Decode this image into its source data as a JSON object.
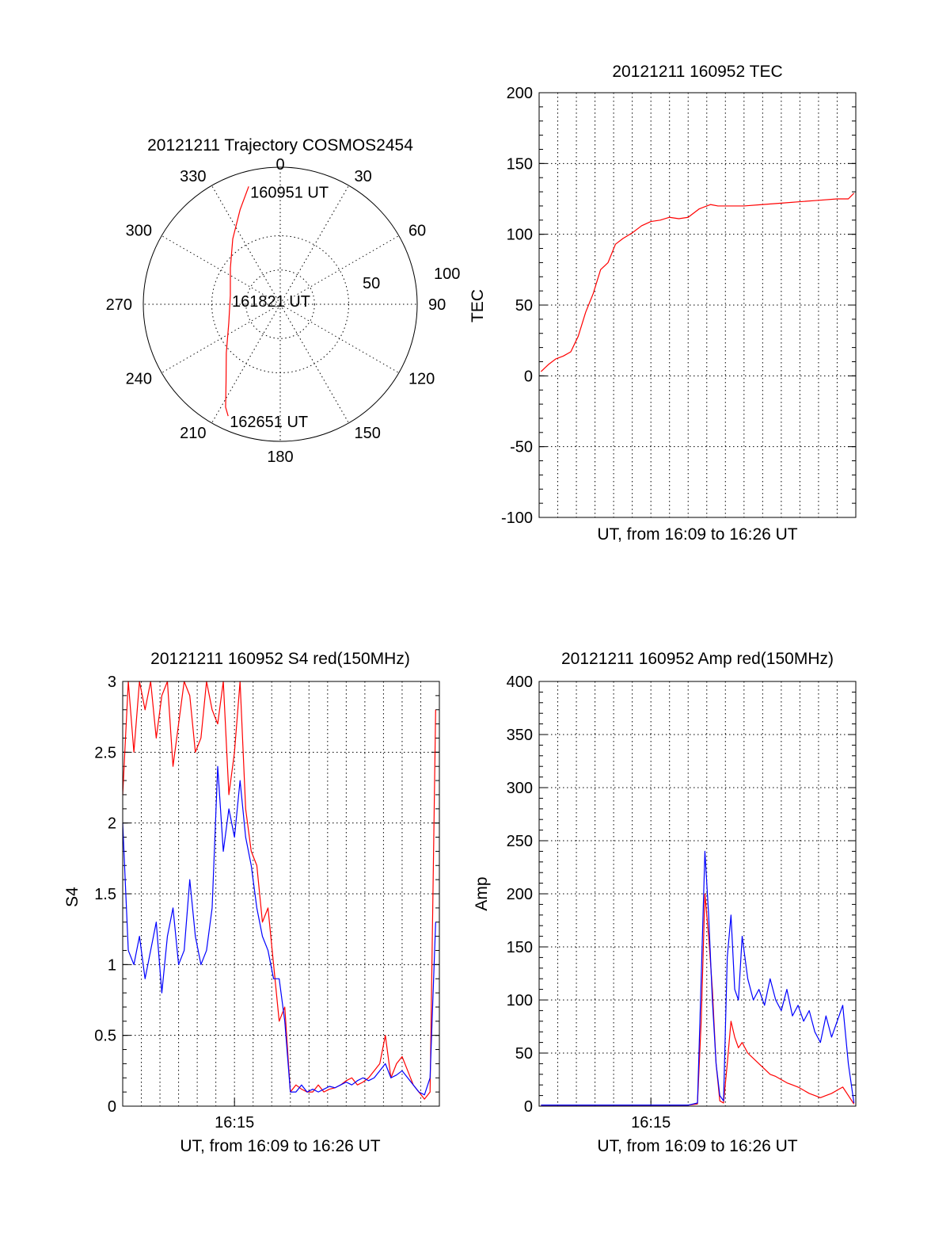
{
  "chart_data": [
    {
      "id": "trajectory",
      "type": "polar",
      "title": "20121211 Trajectory COSMOS2454",
      "angle_labels": [
        "0",
        "30",
        "60",
        "90",
        "120",
        "150",
        "180",
        "210",
        "240",
        "270",
        "300",
        "330"
      ],
      "radius_labels": [
        "50",
        "100"
      ],
      "radius_max": 100,
      "series": [
        {
          "color": "#ff0000",
          "points": [
            {
              "azimuth": 345,
              "r": 89
            },
            {
              "azimuth": 337,
              "r": 75
            },
            {
              "azimuth": 324,
              "r": 59
            },
            {
              "azimuth": 306,
              "r": 45
            },
            {
              "azimuth": 280,
              "r": 37
            },
            {
              "azimuth": 250,
              "r": 40
            },
            {
              "azimuth": 228,
              "r": 53
            },
            {
              "azimuth": 215,
              "r": 69
            },
            {
              "azimuth": 208,
              "r": 85
            },
            {
              "azimuth": 205,
              "r": 90
            }
          ]
        }
      ],
      "annotations": [
        {
          "text": "160951 UT",
          "azimuth": 345,
          "r": 89
        },
        {
          "text": "161821 UT",
          "azimuth": 280,
          "r": 37
        },
        {
          "text": "162651 UT",
          "azimuth": 205,
          "r": 90
        }
      ]
    },
    {
      "id": "tec",
      "type": "line",
      "title": "20121211 160952 TEC",
      "xlabel": "UT, from 16:09 to 16:26 UT",
      "ylabel": "TEC",
      "xlim": [
        0,
        17
      ],
      "ylim": [
        -100,
        200
      ],
      "yticks": [
        -100,
        -50,
        0,
        50,
        100,
        150,
        200
      ],
      "xgrid_count": 17,
      "grid": true,
      "series": [
        {
          "color": "#ff0000",
          "x": [
            0.1,
            0.5,
            0.9,
            1.3,
            1.7,
            2.1,
            2.5,
            2.9,
            3.3,
            3.7,
            4.1,
            4.5,
            5.0,
            5.5,
            6.0,
            6.5,
            7.0,
            7.5,
            8.0,
            8.6,
            9.2,
            9.6,
            10.0,
            11.0,
            12.0,
            13.0,
            14.0,
            15.0,
            16.0,
            16.6,
            16.9
          ],
          "y": [
            3,
            8,
            12,
            14,
            17,
            28,
            45,
            58,
            75,
            80,
            93,
            97,
            101,
            106,
            109,
            110,
            112,
            111,
            112,
            118,
            121,
            120,
            120,
            120,
            121,
            122,
            123,
            124,
            125,
            125,
            129
          ]
        }
      ]
    },
    {
      "id": "s4",
      "type": "line",
      "title": "20121211 160952 S4 red(150MHz)",
      "xlabel": "UT, from 16:09 to 16:26 UT",
      "ylabel": "S4",
      "xtick_labels": [
        "16:15"
      ],
      "xlim": [
        0,
        17
      ],
      "ylim": [
        0,
        3
      ],
      "yticks": [
        "0",
        "0.5",
        "1",
        "1.5",
        "2",
        "2.5",
        "3"
      ],
      "xgrid_count": 17,
      "grid": true,
      "series": [
        {
          "color": "#ff0000",
          "x": [
            0.0,
            0.3,
            0.6,
            0.9,
            1.2,
            1.5,
            1.8,
            2.1,
            2.4,
            2.7,
            3.0,
            3.3,
            3.6,
            3.9,
            4.2,
            4.5,
            4.8,
            5.1,
            5.4,
            5.7,
            6.0,
            6.3,
            6.6,
            6.9,
            7.2,
            7.5,
            7.8,
            8.1,
            8.4,
            8.7,
            9.0,
            9.3,
            9.6,
            9.9,
            10.2,
            10.5,
            10.8,
            11.1,
            11.4,
            11.7,
            12.0,
            12.3,
            12.6,
            12.9,
            13.2,
            13.5,
            13.8,
            14.1,
            14.4,
            14.7,
            15.0,
            15.3,
            15.6,
            15.9,
            16.2,
            16.5,
            16.8
          ],
          "y": [
            2.2,
            3,
            2.5,
            3,
            2.8,
            3,
            2.6,
            2.9,
            3,
            2.4,
            2.7,
            3,
            2.9,
            2.5,
            2.6,
            3,
            2.8,
            2.7,
            3,
            2.2,
            2.5,
            3,
            2.1,
            1.8,
            1.7,
            1.3,
            1.4,
            1.0,
            0.6,
            0.7,
            0.1,
            0.15,
            0.12,
            0.1,
            0.1,
            0.15,
            0.1,
            0.12,
            0.13,
            0.15,
            0.18,
            0.2,
            0.15,
            0.17,
            0.2,
            0.25,
            0.3,
            0.5,
            0.2,
            0.3,
            0.35,
            0.25,
            0.15,
            0.1,
            0.05,
            0.1,
            2.8
          ]
        },
        {
          "color": "#0000ff",
          "x": [
            0.0,
            0.3,
            0.6,
            0.9,
            1.2,
            1.5,
            1.8,
            2.1,
            2.4,
            2.7,
            3.0,
            3.3,
            3.6,
            3.9,
            4.2,
            4.5,
            4.8,
            5.1,
            5.4,
            5.7,
            6.0,
            6.3,
            6.6,
            6.9,
            7.2,
            7.5,
            7.8,
            8.1,
            8.4,
            8.7,
            9.0,
            9.3,
            9.6,
            9.9,
            10.2,
            10.5,
            10.8,
            11.1,
            11.4,
            11.7,
            12.0,
            12.3,
            12.6,
            12.9,
            13.2,
            13.5,
            13.8,
            14.1,
            14.4,
            14.7,
            15.0,
            15.3,
            15.6,
            15.9,
            16.2,
            16.5,
            16.8
          ],
          "y": [
            2.0,
            1.1,
            1.0,
            1.2,
            0.9,
            1.1,
            1.3,
            0.8,
            1.2,
            1.4,
            1.0,
            1.1,
            1.6,
            1.2,
            1.0,
            1.1,
            1.4,
            2.4,
            1.8,
            2.1,
            1.9,
            2.3,
            1.9,
            1.7,
            1.4,
            1.2,
            1.1,
            0.9,
            0.9,
            0.6,
            0.1,
            0.1,
            0.15,
            0.1,
            0.12,
            0.1,
            0.12,
            0.14,
            0.13,
            0.15,
            0.17,
            0.15,
            0.18,
            0.2,
            0.18,
            0.2,
            0.25,
            0.3,
            0.2,
            0.22,
            0.25,
            0.2,
            0.15,
            0.1,
            0.08,
            0.2,
            1.3
          ]
        }
      ]
    },
    {
      "id": "amp",
      "type": "line",
      "title": "20121211 160952 Amp red(150MHz)",
      "xlabel": "UT, from 16:09 to 16:26 UT",
      "ylabel": "Amp",
      "xtick_labels": [
        "16:15"
      ],
      "xlim": [
        0,
        17
      ],
      "ylim": [
        0,
        400
      ],
      "yticks": [
        0,
        50,
        100,
        150,
        200,
        250,
        300,
        350,
        400
      ],
      "xgrid_count": 17,
      "grid": true,
      "series": [
        {
          "color": "#ff0000",
          "x": [
            0.1,
            1.0,
            2.0,
            3.0,
            4.0,
            5.0,
            6.0,
            7.0,
            8.0,
            8.5,
            8.7,
            8.9,
            9.1,
            9.3,
            9.5,
            9.7,
            9.9,
            10.1,
            10.3,
            10.5,
            10.7,
            10.9,
            11.2,
            11.5,
            11.8,
            12.1,
            12.4,
            12.7,
            13.0,
            13.3,
            13.6,
            13.9,
            14.2,
            14.5,
            14.8,
            15.1,
            15.4,
            15.7,
            16.0,
            16.3,
            16.6,
            16.9
          ],
          "y": [
            1,
            1,
            1,
            1,
            1,
            1,
            1,
            1,
            1,
            2,
            80,
            200,
            160,
            110,
            40,
            5,
            3,
            40,
            80,
            65,
            55,
            60,
            50,
            45,
            40,
            35,
            30,
            28,
            25,
            22,
            20,
            18,
            15,
            12,
            10,
            8,
            10,
            12,
            15,
            18,
            10,
            2
          ]
        },
        {
          "color": "#0000ff",
          "x": [
            0.1,
            1.0,
            2.0,
            3.0,
            4.0,
            5.0,
            6.0,
            7.0,
            8.0,
            8.5,
            8.7,
            8.9,
            9.1,
            9.3,
            9.5,
            9.7,
            9.9,
            10.1,
            10.3,
            10.5,
            10.7,
            10.9,
            11.2,
            11.5,
            11.8,
            12.1,
            12.4,
            12.7,
            13.0,
            13.3,
            13.6,
            13.9,
            14.2,
            14.5,
            14.8,
            15.1,
            15.4,
            15.7,
            16.0,
            16.3,
            16.6,
            16.9
          ],
          "y": [
            1,
            1,
            1,
            1,
            1,
            1,
            1,
            1,
            1,
            3,
            120,
            240,
            180,
            100,
            40,
            10,
            5,
            140,
            180,
            110,
            100,
            160,
            120,
            100,
            110,
            95,
            120,
            100,
            90,
            110,
            85,
            95,
            80,
            90,
            70,
            60,
            85,
            65,
            80,
            95,
            40,
            3
          ]
        }
      ]
    }
  ]
}
